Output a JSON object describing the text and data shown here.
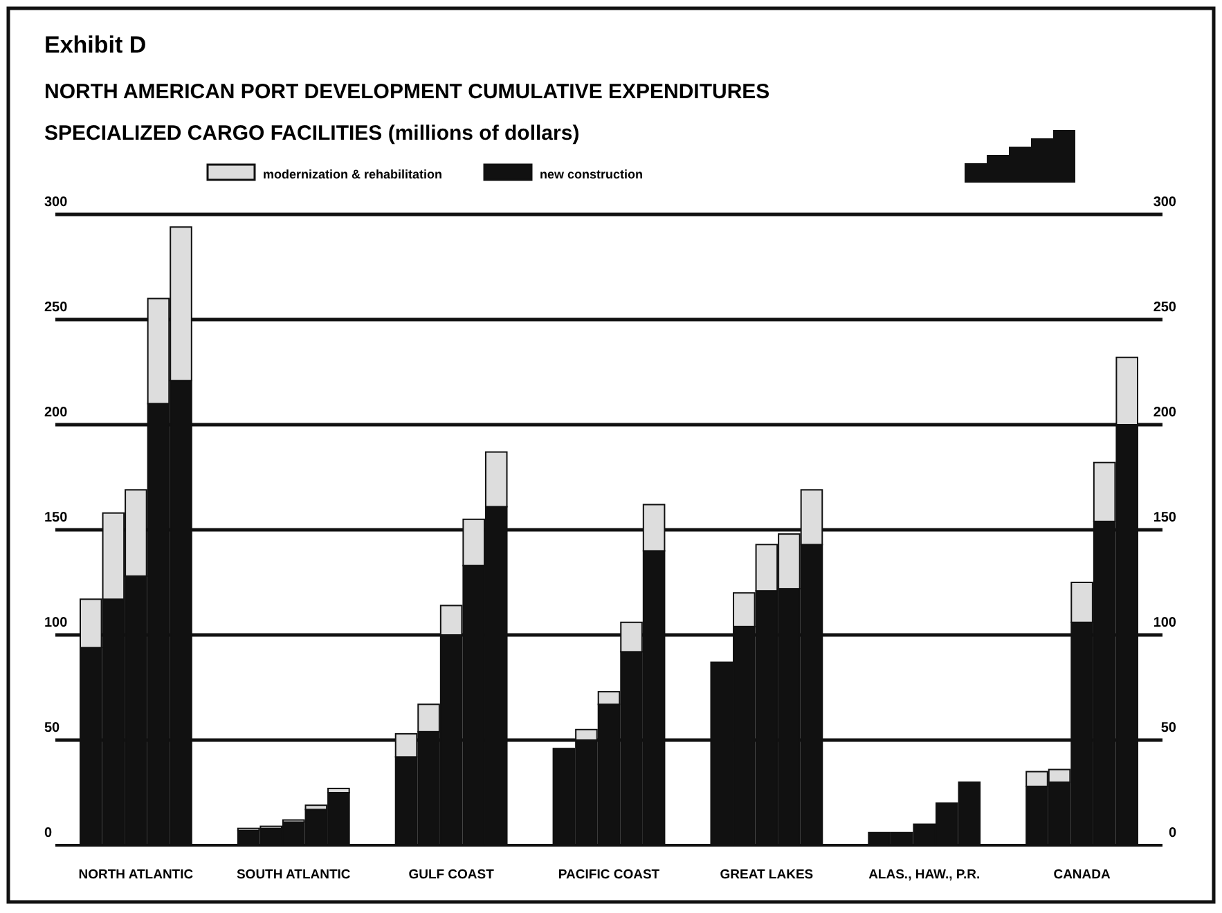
{
  "chart_data": {
    "type": "bar",
    "stacked": true,
    "title": "NORTH AMERICAN PORT DEVELOPMENT CUMULATIVE EXPENDITURES",
    "subtitle": "SPECIALIZED CARGO FACILITIES (millions of dollars)",
    "annotations": [
      "Exhibit D"
    ],
    "categories": [
      null,
      null,
      "NORTH ATLANTIC",
      null,
      null,
      null,
      null,
      null,
      null,
      "SOUTH ATLANTIC",
      null,
      null,
      null,
      null,
      null,
      null,
      "GULF COAST",
      null,
      null,
      null,
      null,
      null,
      null,
      "PACIFIC COAST",
      null,
      null,
      null,
      null,
      null,
      null,
      "GREAT LAKES",
      null,
      null,
      null,
      null,
      null,
      null,
      "ALAS., HAW., P.R.",
      null,
      null,
      null,
      null,
      null,
      null,
      "CANADA",
      null,
      null
    ],
    "series": [
      {
        "name": "new construction",
        "color": "#111111",
        "values": [
          94,
          117,
          128,
          210,
          221,
          null,
          null,
          7,
          8,
          11,
          17,
          25,
          null,
          null,
          42,
          54,
          100,
          133,
          161,
          null,
          null,
          46,
          50,
          67,
          92,
          140,
          null,
          null,
          87,
          104,
          121,
          122,
          143,
          null,
          null,
          6,
          6,
          10,
          20,
          30,
          null,
          null,
          28,
          30,
          106,
          154,
          200
        ]
      },
      {
        "name": "modernization & rehabilitation",
        "color": "#dddddd",
        "values": [
          23,
          41,
          41,
          50,
          73,
          null,
          null,
          1,
          1,
          1,
          2,
          2,
          null,
          null,
          11,
          13,
          14,
          22,
          26,
          null,
          null,
          0,
          5,
          6,
          14,
          22,
          null,
          null,
          0,
          16,
          22,
          26,
          26,
          null,
          null,
          0,
          0,
          0,
          0,
          0,
          null,
          null,
          7,
          6,
          19,
          28,
          32
        ]
      }
    ],
    "ylim": [
      0,
      300
    ],
    "yticks": [
      0,
      50,
      100,
      150,
      200,
      250,
      300
    ],
    "y2lim": [
      0,
      300
    ],
    "y2ticks": [
      0,
      50,
      100,
      150,
      200,
      250,
      300
    ],
    "grid": "y",
    "legend": "top left"
  }
}
